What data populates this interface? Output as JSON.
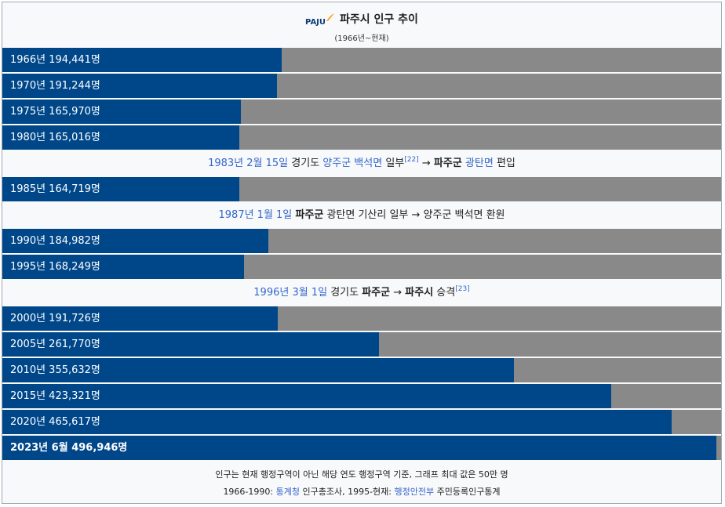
{
  "header": {
    "logo_text": "PAJU",
    "title": "파주시 인구 추이",
    "subtitle": "(1966년~현재)"
  },
  "colors": {
    "bar": "#00478a",
    "track": "#898989",
    "link": "#3366cc",
    "logo_accent": "#f5a21b"
  },
  "chart_data": {
    "type": "bar",
    "orientation": "horizontal",
    "xlim": [
      0,
      500000
    ],
    "categories": [
      "1966년",
      "1970년",
      "1975년",
      "1980년",
      "1985년",
      "1990년",
      "1995년",
      "2000년",
      "2005년",
      "2010년",
      "2015년",
      "2020년",
      "2023년 6월"
    ],
    "values": [
      194441,
      191244,
      165970,
      165016,
      164719,
      184982,
      168249,
      191726,
      261770,
      355632,
      423321,
      465617,
      496946
    ],
    "labels": [
      "1966년 194,441명",
      "1970년 191,244명",
      "1975년 165,970명",
      "1980년 165,016명",
      "1985년 164,719명",
      "1990년 184,982명",
      "1995년 168,249명",
      "2000년 191,726명",
      "2005년 261,770명",
      "2010년 355,632명",
      "2015년 423,321명",
      "2020년 465,617명",
      "2023년 6월 496,946명"
    ]
  },
  "notes": [
    {
      "after_index": 3,
      "date": "1983년 2월 15일",
      "text_a": " 경기도 ",
      "place1": "양주군 백석면",
      "text_b": " 일부",
      "ref": "[22]",
      "arrow": " → ",
      "place2_bold": "파주군",
      "place3": " 광탄면",
      "text_c": " 편입"
    },
    {
      "after_index": 4,
      "date": "1987년 1월 1일",
      "text_a": " ",
      "bold1": "파주군",
      "text_b": " 광탄면 기산리 일부 → 양주군 백석면 환원"
    },
    {
      "after_index": 6,
      "date": "1996년 3월 1일",
      "text_a": " 경기도 ",
      "bold1": "파주군",
      "arrow": " → ",
      "bold2": "파주시",
      "text_b": " 승격",
      "ref": "[23]"
    }
  ],
  "footer": {
    "line1": "인구는 현재 행정구역이 아닌 해당 연도 행정구역 기준, 그래프 최대 값은 50만 명",
    "line2_a": "1966-1990: ",
    "line2_link1": "통계청",
    "line2_b": " 인구총조사, 1995-현재: ",
    "line2_link2": "행정안전부",
    "line2_c": " 주민등록인구통계"
  }
}
